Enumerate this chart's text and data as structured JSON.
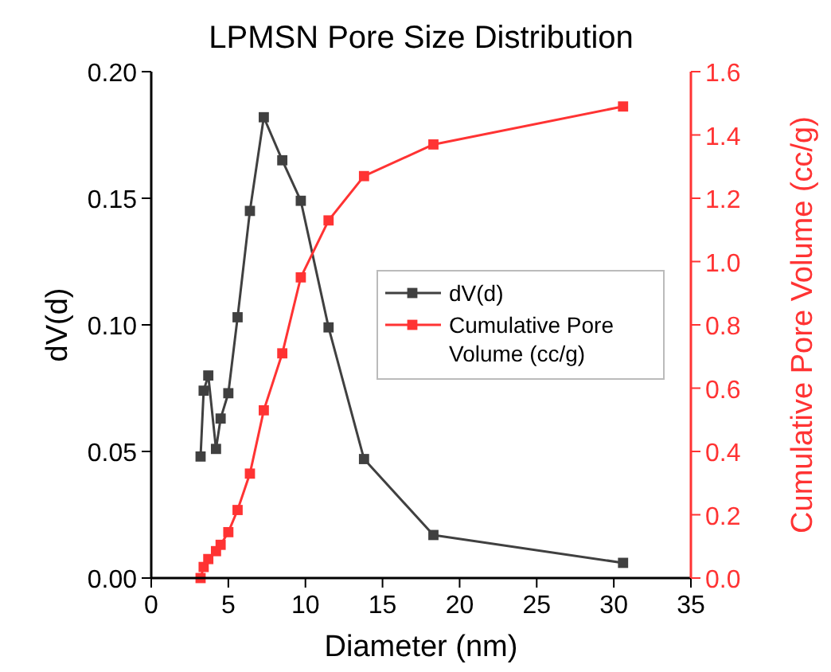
{
  "chart_data": {
    "type": "line",
    "title": "LPMSN Pore Size Distribution",
    "xlabel": "Diameter (nm)",
    "ylabel": "dV(d)",
    "y2label": "Cumulative Pore Volume (cc/g)",
    "x": [
      3.2,
      3.4,
      3.7,
      4.2,
      4.5,
      5.0,
      5.6,
      6.4,
      7.3,
      8.5,
      9.7,
      11.5,
      13.8,
      18.3,
      30.6
    ],
    "series": [
      {
        "name": "dV(d)",
        "color": "#404040",
        "values": [
          0.048,
          0.074,
          0.08,
          0.051,
          0.063,
          0.073,
          0.103,
          0.145,
          0.182,
          0.165,
          0.149,
          0.099,
          0.047,
          0.017,
          0.006
        ]
      },
      {
        "name": "Cumulative Pore Volume (cc/g)",
        "color": "#ff3333",
        "axis": "y2",
        "values": [
          0.0,
          0.035,
          0.06,
          0.085,
          0.105,
          0.145,
          0.215,
          0.33,
          0.53,
          0.71,
          0.95,
          1.13,
          1.27,
          1.37,
          1.49
        ]
      }
    ],
    "xlim": [
      0,
      35
    ],
    "xticks": [
      0,
      5,
      10,
      15,
      20,
      25,
      30,
      35
    ],
    "ylim": [
      0,
      0.2
    ],
    "yticks": [
      {
        "value": 0,
        "label": "0.00"
      },
      {
        "value": 0.05,
        "label": "0.05"
      },
      {
        "value": 0.1,
        "label": "0.10"
      },
      {
        "value": 0.15,
        "label": "0.15"
      },
      {
        "value": 0.2,
        "label": "0.20"
      }
    ],
    "y2lim": [
      0,
      1.6
    ],
    "y2ticks": [
      {
        "value": 0,
        "label": "0.0"
      },
      {
        "value": 0.2,
        "label": "0.2"
      },
      {
        "value": 0.4,
        "label": "0.4"
      },
      {
        "value": 0.6,
        "label": "0.6"
      },
      {
        "value": 0.8,
        "label": "0.8"
      },
      {
        "value": 1,
        "label": "1.0"
      },
      {
        "value": 1.2,
        "label": "1.2"
      },
      {
        "value": 1.4,
        "label": "1.4"
      },
      {
        "value": 1.6,
        "label": "1.6"
      }
    ],
    "marker": "square",
    "legend": "right",
    "grid": false
  }
}
